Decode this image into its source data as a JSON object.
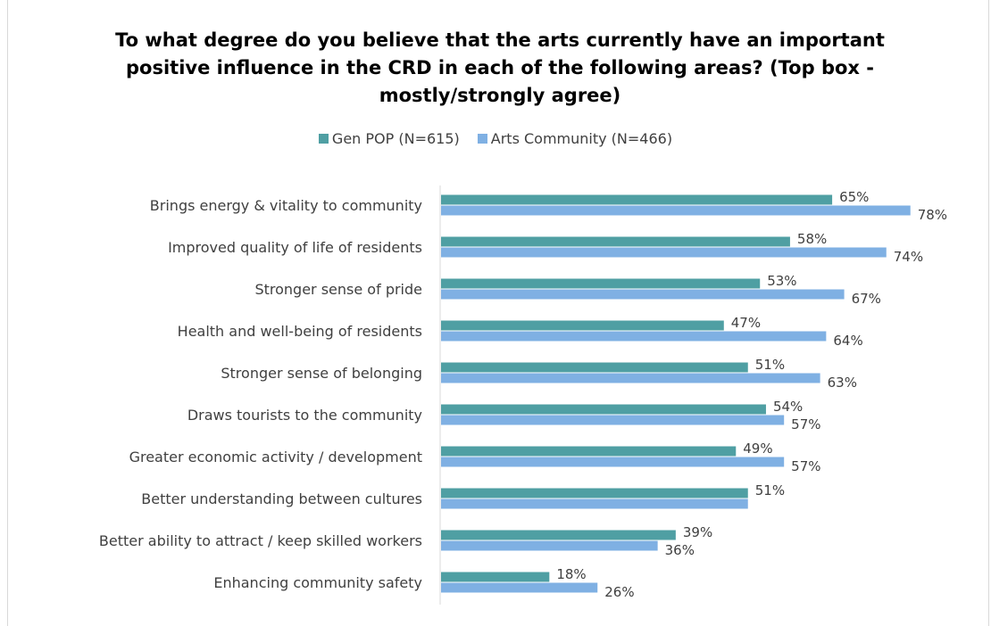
{
  "chart_data": {
    "type": "bar",
    "orientation": "horizontal",
    "title": "To what degree do you believe that the arts currently have an important positive influence in the CRD in each of the following areas? (Top box - mostly/strongly agree)",
    "categories": [
      "Brings energy &  vitality to community",
      "Improved quality of life of residents",
      "Stronger sense of pride",
      "Health and well-being of residents",
      "Stronger sense of belonging",
      "Draws tourists to the community",
      "Greater economic activity / development",
      "Better understanding between cultures",
      "Better ability to attract / keep skilled workers",
      "Enhancing community safety"
    ],
    "series": [
      {
        "name": "Gen POP (N=615)",
        "color": "#4f9fa3",
        "values": [
          65,
          58,
          53,
          47,
          51,
          54,
          49,
          51,
          39,
          18
        ],
        "labels": [
          "65%",
          "58%",
          "53%",
          "47%",
          "51%",
          "54%",
          "49%",
          "51%",
          "39%",
          "18%"
        ]
      },
      {
        "name": "Arts Community (N=466)",
        "color": "#7fb0e3",
        "values": [
          78,
          74,
          67,
          64,
          63,
          57,
          57,
          51,
          36,
          26
        ],
        "labels": [
          "78%",
          "74%",
          "67%",
          "64%",
          "63%",
          "57%",
          "57%",
          "",
          "36%",
          "26%"
        ]
      }
    ],
    "xlim": [
      0,
      100
    ],
    "grid": false,
    "legend_position": "top"
  }
}
